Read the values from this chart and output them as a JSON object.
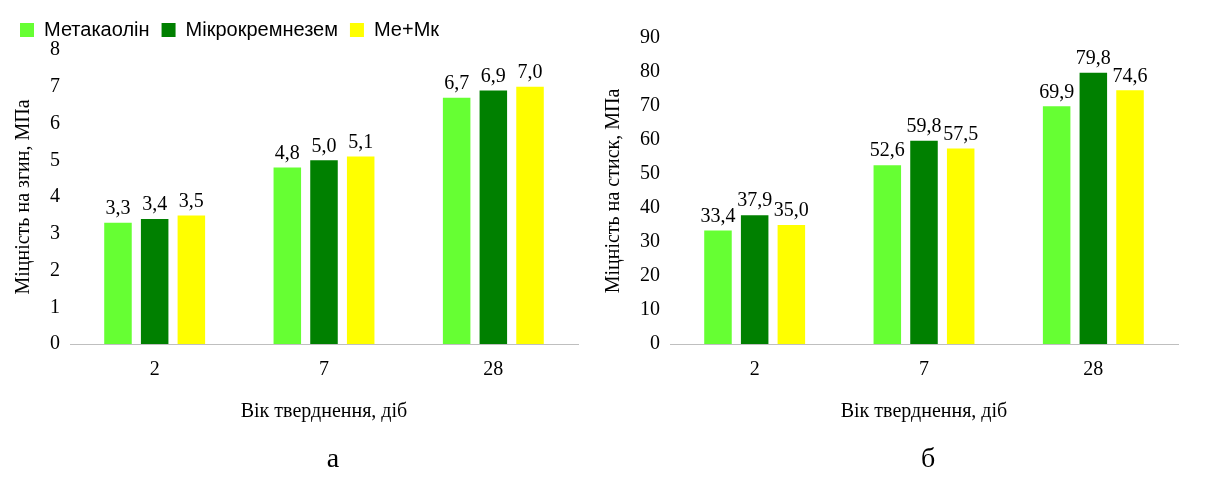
{
  "chart_data": [
    {
      "type": "bar",
      "xlabel": "Вік тверднення, діб",
      "ylabel": "Міцність на згин, МПа",
      "categories": [
        "2",
        "7",
        "28"
      ],
      "series": [
        {
          "name": "Метакаолін",
          "color": "#66ff33",
          "values": [
            3.3,
            4.8,
            6.7
          ],
          "value_labels": [
            "3,3",
            "4,8",
            "6,7"
          ]
        },
        {
          "name": "Мікрокремнезем",
          "color": "#008000",
          "values": [
            3.4,
            5.0,
            6.9
          ],
          "value_labels": [
            "3,4",
            "5,0",
            "6,9"
          ]
        },
        {
          "name": "Ме+Мк",
          "color": "#ffff00",
          "values": [
            3.5,
            5.1,
            7.0
          ],
          "value_labels": [
            "3,5",
            "5,1",
            "7,0"
          ]
        }
      ],
      "ylim": [
        0,
        8
      ],
      "yticks": [
        0,
        1,
        2,
        3,
        4,
        5,
        6,
        7,
        8
      ],
      "legend": "top",
      "annotations": [
        "а"
      ]
    },
    {
      "type": "bar",
      "xlabel": "Вік тверднення, діб",
      "ylabel": "Міцність на стиск, МПа",
      "categories": [
        "2",
        "7",
        "28"
      ],
      "series": [
        {
          "color": "#66ff33",
          "values": [
            33.4,
            52.6,
            69.9
          ],
          "value_labels": [
            "33,4",
            "52,6",
            "69,9"
          ]
        },
        {
          "color": "#008000",
          "values": [
            37.9,
            59.8,
            79.8
          ],
          "value_labels": [
            "37,9",
            "59,8",
            "79,8"
          ]
        },
        {
          "color": "#ffff00",
          "values": [
            35.0,
            57.5,
            74.6
          ],
          "value_labels": [
            "35,0",
            "57,5",
            "74,6"
          ]
        }
      ],
      "ylim": [
        0,
        90
      ],
      "yticks": [
        0,
        10,
        20,
        30,
        40,
        50,
        60,
        70,
        80,
        90
      ],
      "annotations": [
        "б"
      ]
    }
  ]
}
